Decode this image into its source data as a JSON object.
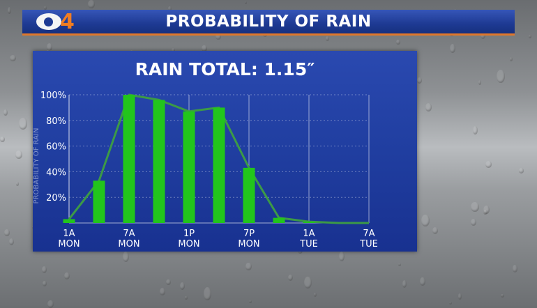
{
  "header": {
    "title": "PROBABILITY OF RAIN",
    "logo_number": "4"
  },
  "colors": {
    "header_blue": "#1e3a93",
    "accent_orange": "#e0772a",
    "bar_green": "#22c51c",
    "line_green": "#3c9a46",
    "panel_blue": "#203ea0"
  },
  "chart_data": {
    "type": "bar",
    "title": "RAIN TOTAL: 1.15″",
    "ylabel": "PROBABILITY OF RAIN",
    "xlabel": "",
    "ylim": [
      0,
      100
    ],
    "yticks": [
      "20%",
      "40%",
      "60%",
      "80%",
      "100%"
    ],
    "ytick_values": [
      20,
      40,
      60,
      80,
      100
    ],
    "x_hours": [
      0,
      3,
      6,
      9,
      12,
      15,
      18,
      21,
      24,
      27,
      30
    ],
    "values": [
      3,
      33,
      100,
      96,
      87,
      90,
      43,
      4,
      1,
      0,
      0
    ],
    "xtick_hours": [
      0,
      6,
      12,
      18,
      24,
      30
    ],
    "xticks": [
      {
        "line1": "1A",
        "line2": "MON"
      },
      {
        "line1": "7A",
        "line2": "MON"
      },
      {
        "line1": "1P",
        "line2": "MON"
      },
      {
        "line1": "7P",
        "line2": "MON"
      },
      {
        "line1": "1A",
        "line2": "TUE"
      },
      {
        "line1": "7A",
        "line2": "TUE"
      }
    ],
    "grid": true
  }
}
